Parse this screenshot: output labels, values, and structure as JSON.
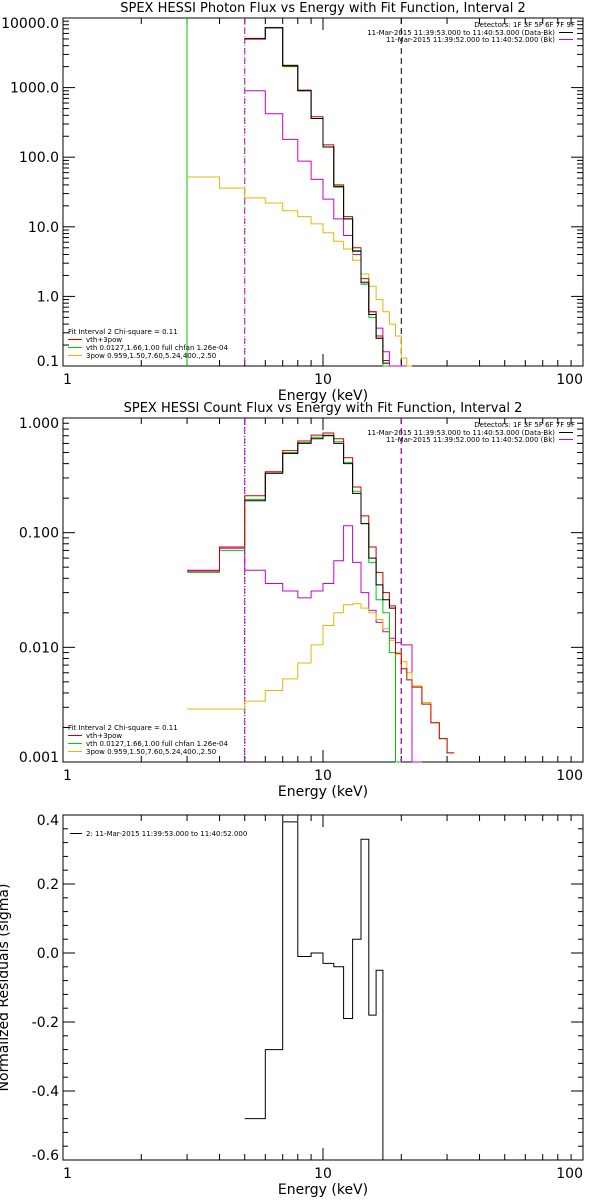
{
  "chart_data": [
    {
      "type": "line",
      "title": "SPEX HESSI Photon Flux vs Energy with Fit Function, Interval 2",
      "xlabel": "Energy (keV)",
      "ylabel": "",
      "x_scale": "log",
      "y_scale": "log",
      "xlim": [
        1,
        100
      ],
      "ylim": [
        0.1,
        10000
      ],
      "x_tick_labels": [
        "1",
        "10",
        "100"
      ],
      "x_ticks": [
        1,
        10,
        100
      ],
      "y_tick_labels": [
        "10000.0",
        "1000.0",
        "100.0",
        "10.0",
        "1.0",
        "0.1"
      ],
      "y_ticks": [
        10000,
        1000,
        100,
        10,
        1,
        0.1
      ],
      "detectors_text": "Detectors: 1F 3F 5F 6F 7F 9F",
      "legend_top": [
        {
          "text": "11-Mar-2015 11:39:53.000 to 11:40:53.000 (Data-Bk)",
          "color": "#000000"
        },
        {
          "text": "11-Mar-2015 11:39:52.000 to 11:40:52.000 (Bk)",
          "color": "#cc00cc"
        }
      ],
      "legend_bottom": [
        {
          "text": "Fit Interval 2   Chi-square = 0.11",
          "color": ""
        },
        {
          "text": "vth+3pow",
          "color": "#cc0000"
        },
        {
          "text": "vth 0.0127,1.66,1.00  full chfan 1.26e-04",
          "color": "#00cc00"
        },
        {
          "text": "3pow 0.959,1.50,7.60,5.24,400.,2.50",
          "color": "#e6b800"
        }
      ],
      "vlines": [
        {
          "x": 3,
          "color": "#00cc00",
          "style": "solid"
        },
        {
          "x": 5,
          "color": "#00cc00",
          "style": "dotted"
        },
        {
          "x": 5,
          "color": "#cc00cc",
          "style": "dashed"
        },
        {
          "x": 20,
          "color": "#000000",
          "style": "dashed"
        }
      ],
      "edges": [
        3,
        4,
        5,
        6,
        7,
        8,
        9,
        10,
        11,
        12,
        13,
        14,
        15,
        16,
        17,
        18,
        19,
        20,
        21,
        22
      ],
      "series": [
        {
          "key": "bk",
          "color": "#cc00cc",
          "values": [
            null,
            null,
            900,
            420,
            180,
            88,
            48,
            25,
            13,
            7.5,
            4,
            1.5,
            0.6,
            0.35,
            0.16,
            0.1,
            0.1,
            0.1,
            null
          ]
        },
        {
          "key": "pow",
          "color": "#e6b800",
          "values": [
            52,
            36,
            26,
            22,
            17,
            14,
            11,
            8.2,
            6.2,
            4.8,
            3.3,
            2.1,
            1.4,
            0.9,
            0.6,
            0.4,
            0.27,
            0.13,
            0.1
          ]
        },
        {
          "key": "vth",
          "color": "#00cc00",
          "values": [
            null,
            null,
            5000,
            7200,
            2000,
            900,
            360,
            140,
            37,
            13,
            4.4,
            1.5,
            0.5,
            0.25,
            0.1,
            null,
            null,
            null,
            null
          ]
        },
        {
          "key": "vth_pow",
          "color": "#cc0000",
          "values": [
            null,
            null,
            5100,
            7300,
            2100,
            920,
            380,
            150,
            40,
            14,
            5,
            1.8,
            0.6,
            0.27,
            0.12,
            null,
            null,
            null,
            null
          ]
        },
        {
          "key": "data",
          "color": "#000000",
          "values": [
            null,
            null,
            5000,
            7200,
            2050,
            900,
            360,
            140,
            38,
            13,
            4.5,
            1.6,
            0.55,
            0.25,
            0.11,
            null,
            null,
            null,
            null
          ]
        }
      ]
    },
    {
      "type": "line",
      "title": "SPEX HESSI Count Flux vs Energy with Fit Function, Interval 2",
      "xlabel": "Energy (keV)",
      "ylabel": "",
      "x_scale": "log",
      "y_scale": "log",
      "xlim": [
        1,
        100
      ],
      "ylim": [
        0.001,
        1
      ],
      "x_tick_labels": [
        "1",
        "10",
        "100"
      ],
      "x_ticks": [
        1,
        10,
        100
      ],
      "y_tick_labels": [
        "1.000",
        "0.100",
        "0.010",
        "0.001"
      ],
      "y_ticks": [
        1,
        0.1,
        0.01,
        0.001
      ],
      "detectors_text": "Detectors: 1F 3F 5F 6F 7F 9F",
      "legend_top": [
        {
          "text": "11-Mar-2015 11:39:53.000 to 11:40:53.000 (Data-Bk)",
          "color": "#000000"
        },
        {
          "text": "11-Mar-2015 11:39:52.000 to 11:40:52.000 (Bk)",
          "color": "#cc00cc"
        }
      ],
      "legend_bottom": [
        {
          "text": "Fit Interval 2   Chi-square = 0.11",
          "color": ""
        },
        {
          "text": "vth+3pow",
          "color": "#cc0000"
        },
        {
          "text": "vth 0.0127,1.66,1.00  full chfan 1.26e-04",
          "color": "#00cc00"
        },
        {
          "text": "3pow 0.959,1.50,7.60,5.24,400.,2.50",
          "color": "#e6b800"
        }
      ],
      "vlines": [
        {
          "x": 5,
          "color": "#000000",
          "style": "dotted"
        },
        {
          "x": 5,
          "color": "#cc00cc",
          "style": "dashed"
        },
        {
          "x": 20,
          "color": "#000000",
          "style": "dashed"
        },
        {
          "x": 20,
          "color": "#cc00cc",
          "style": "dashed"
        }
      ],
      "edges": [
        3,
        4,
        5,
        6,
        7,
        8,
        9,
        10,
        11,
        12,
        13,
        14,
        15,
        16,
        17,
        18,
        19,
        20,
        21,
        22,
        24,
        26,
        28,
        30,
        32
      ],
      "series": [
        {
          "key": "bk",
          "color": "#cc00cc",
          "values": [
            0.046,
            0.073,
            0.047,
            0.036,
            0.031,
            0.027,
            0.031,
            0.036,
            0.057,
            0.115,
            0.055,
            0.03,
            0.021,
            0.0165,
            0.0137,
            0.012,
            0.011,
            0.0105,
            0.0105,
            0.001,
            null,
            null,
            null,
            null
          ]
        },
        {
          "key": "pow",
          "color": "#e6b800",
          "values": [
            0.0029,
            0.0029,
            0.0034,
            0.0042,
            0.0053,
            0.0073,
            0.0105,
            0.0155,
            0.02,
            0.0235,
            0.024,
            0.022,
            0.02,
            0.0175,
            0.0145,
            0.0115,
            0.009,
            0.0075,
            0.006,
            0.0046,
            0.0033,
            0.0022,
            0.0016,
            0.0012
          ]
        },
        {
          "key": "vth",
          "color": "#00cc00",
          "values": [
            0.045,
            0.07,
            0.195,
            0.33,
            0.5,
            0.61,
            0.68,
            0.71,
            0.62,
            0.41,
            0.23,
            0.12,
            0.055,
            0.026,
            0.02,
            0.009,
            0.001,
            null,
            null,
            null,
            null,
            null,
            null,
            null
          ]
        },
        {
          "key": "vth_pow",
          "color": "#cc0000",
          "values": [
            0.047,
            0.075,
            0.21,
            0.34,
            0.52,
            0.63,
            0.71,
            0.74,
            0.66,
            0.45,
            0.25,
            0.14,
            0.075,
            0.045,
            0.03,
            0.023,
            0.0088,
            0.0065,
            0.0052,
            0.0045,
            0.0032,
            0.0022,
            0.0016,
            0.0012
          ]
        },
        {
          "key": "data",
          "color": "#000000",
          "values": [
            null,
            null,
            0.19,
            0.33,
            0.49,
            0.6,
            0.66,
            0.7,
            0.6,
            0.4,
            0.22,
            0.12,
            0.06,
            0.035,
            0.026,
            0.022,
            null,
            null,
            null,
            null,
            null,
            null,
            null,
            null
          ]
        }
      ]
    },
    {
      "type": "line",
      "title": "",
      "xlabel": "Energy (keV)",
      "ylabel": "Normalized Residuals (sigma)",
      "x_scale": "log",
      "y_scale": "linear",
      "xlim": [
        1,
        100
      ],
      "ylim": [
        -0.6,
        0.4
      ],
      "x_tick_labels": [
        "1",
        "10",
        "100"
      ],
      "x_ticks": [
        1,
        10,
        100
      ],
      "y_tick_labels": [
        "0.4",
        "0.2",
        "0.0",
        "-0.2",
        "-0.4",
        "-0.6"
      ],
      "y_ticks": [
        0.4,
        0.2,
        0.0,
        -0.2,
        -0.4,
        -0.6
      ],
      "detectors_text": "",
      "legend_top": [
        {
          "text": "2: 11-Mar-2015 11:39:53.000 to 11:40:52.000",
          "color": "#000000"
        }
      ],
      "legend_bottom": [],
      "vlines": [],
      "edges": [
        5,
        6,
        7,
        8,
        9,
        10,
        11,
        12,
        13,
        14,
        15,
        16,
        17,
        18,
        19,
        20
      ],
      "series": [
        {
          "key": "resid",
          "color": "#000000",
          "values": [
            -0.48,
            -0.28,
            0.38,
            -0.01,
            0.0,
            -0.03,
            -0.04,
            -0.19,
            0.04,
            0.33,
            -0.18,
            -0.05,
            -0.6,
            -0.6,
            -0.6
          ]
        }
      ]
    }
  ]
}
